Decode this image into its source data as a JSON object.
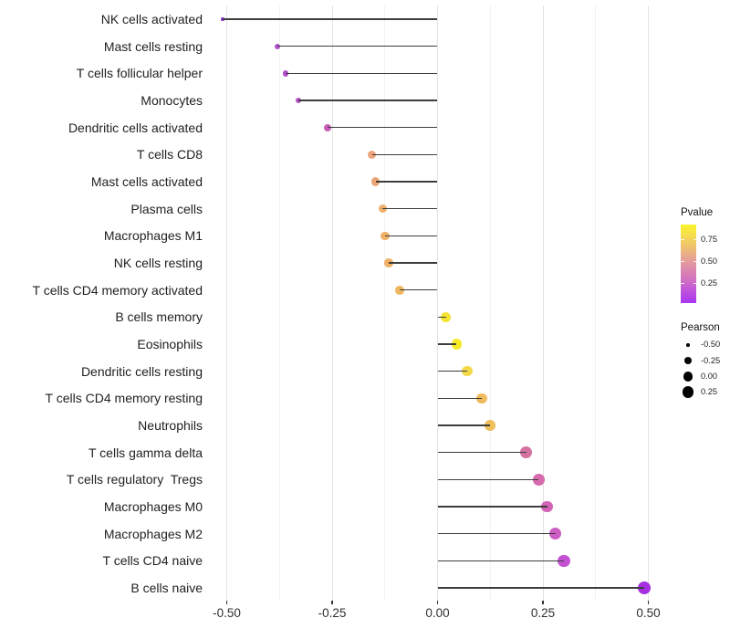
{
  "chart_data": {
    "type": "lollipop",
    "title": "",
    "xlabel": "",
    "ylabel": "",
    "x_ticks": [
      "-0.50",
      "-0.25",
      "0.00",
      "0.25",
      "0.50"
    ],
    "x_tick_values": [
      -0.5,
      -0.25,
      0.0,
      0.25,
      0.5
    ],
    "x_minor_values": [
      -0.375,
      -0.125,
      0.125,
      0.375
    ],
    "xlim": [
      -0.56,
      0.545
    ],
    "grid": "vertical-only",
    "size_encoding": "Pearson",
    "color_encoding": "Pvalue",
    "points": [
      {
        "label": "NK cells activated",
        "pearson": -0.51,
        "color": "#9232DE"
      },
      {
        "label": "Mast cells resting",
        "pearson": -0.38,
        "color": "#B350CA"
      },
      {
        "label": "T cells follicular helper",
        "pearson": -0.36,
        "color": "#B24ECC"
      },
      {
        "label": "Monocytes",
        "pearson": -0.33,
        "color": "#B953C7"
      },
      {
        "label": "Dendritic cells activated",
        "pearson": -0.26,
        "color": "#C75FB7"
      },
      {
        "label": "T cells CD8",
        "pearson": -0.155,
        "color": "#EDA47C"
      },
      {
        "label": "Mast cells activated",
        "pearson": -0.147,
        "color": "#ECA577"
      },
      {
        "label": "Plasma cells",
        "pearson": -0.13,
        "color": "#EFAE6B"
      },
      {
        "label": "Macrophages M1",
        "pearson": -0.124,
        "color": "#EFB167"
      },
      {
        "label": "NK cells resting",
        "pearson": -0.116,
        "color": "#EFB065"
      },
      {
        "label": "T cells CD4 memory activated",
        "pearson": -0.09,
        "color": "#F0B761"
      },
      {
        "label": "B cells memory",
        "pearson": 0.02,
        "color": "#F4E431"
      },
      {
        "label": "Eosinophils",
        "pearson": 0.045,
        "color": "#F5EA28"
      },
      {
        "label": "Dendritic cells resting",
        "pearson": 0.07,
        "color": "#F3D84A"
      },
      {
        "label": "T cells CD4 memory resting",
        "pearson": 0.105,
        "color": "#F0BB5E"
      },
      {
        "label": "Neutrophils",
        "pearson": 0.125,
        "color": "#F0BE5A"
      },
      {
        "label": "T cells gamma delta",
        "pearson": 0.21,
        "color": "#D4739F"
      },
      {
        "label": "T cells regulatory  Tregs",
        "pearson": 0.24,
        "color": "#D76BAD"
      },
      {
        "label": "Macrophages M0",
        "pearson": 0.26,
        "color": "#D364B8"
      },
      {
        "label": "Macrophages M2",
        "pearson": 0.28,
        "color": "#CD5CC4"
      },
      {
        "label": "T cells CD4 naive",
        "pearson": 0.3,
        "color": "#C351D2"
      },
      {
        "label": "B cells naive",
        "pearson": 0.49,
        "color": "#A52FE0"
      }
    ]
  },
  "legends": {
    "pvalue": {
      "title": "Pvalue",
      "ticks": [
        {
          "label": "0.75",
          "value": 0.75
        },
        {
          "label": "0.50",
          "value": 0.5
        },
        {
          "label": "0.25",
          "value": 0.25
        }
      ],
      "bar_range": [
        0.917,
        0.031
      ],
      "gradient_top_to_bottom": [
        "#FBF32A",
        "#F4DC52",
        "#EFC070",
        "#E7A392",
        "#DC88AE",
        "#D06FC4",
        "#BE50DE",
        "#A936F0"
      ]
    },
    "pearson": {
      "title": "Pearson",
      "entries": [
        {
          "label": "-0.50",
          "value": -0.5
        },
        {
          "label": "-0.25",
          "value": -0.25
        },
        {
          "label": "0.00",
          "value": 0.0
        },
        {
          "label": "0.25",
          "value": 0.25
        }
      ]
    }
  },
  "colors": {
    "background": "#ffffff",
    "stem": "#3d3d3d",
    "axis_text": "#303030",
    "gridline_major": "#e3e3e3",
    "gridline_minor": "#f2f2f2"
  }
}
